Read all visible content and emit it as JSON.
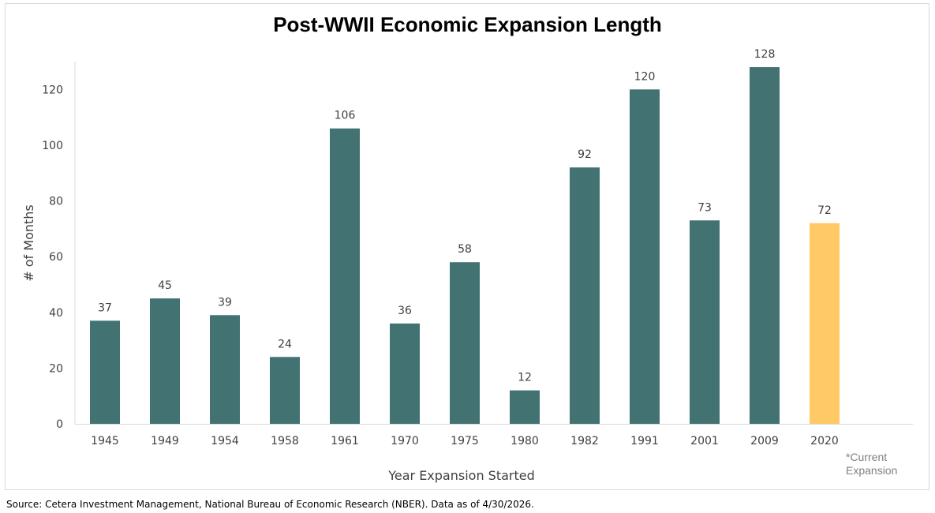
{
  "chart_data": {
    "type": "bar",
    "title": "Post-WWII Economic Expansion Length",
    "xlabel": "Year Expansion Started",
    "ylabel": "# of Months",
    "ylim": [
      0,
      130
    ],
    "yticks": [
      0,
      20,
      40,
      60,
      80,
      100,
      120
    ],
    "grid": false,
    "legend": "none",
    "categories": [
      "1945",
      "1949",
      "1954",
      "1958",
      "1961",
      "1970",
      "1975",
      "1980",
      "1982",
      "1991",
      "2001",
      "2009",
      "2020"
    ],
    "values": [
      37,
      45,
      39,
      24,
      106,
      36,
      58,
      12,
      92,
      120,
      73,
      128,
      72
    ],
    "colors": {
      "default": "#427272",
      "highlight": "#FFC966",
      "highlight_category": "2020"
    }
  },
  "note": "*Current\nExpansion",
  "source": "Source: Cetera Investment Management, National Bureau of Economic Research (NBER). Data as of 4/30/2026."
}
